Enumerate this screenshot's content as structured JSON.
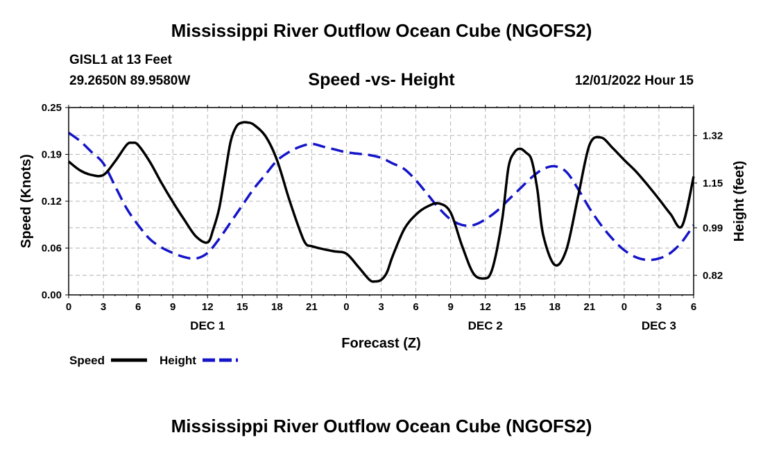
{
  "header": {
    "main_title": "Mississippi River Outflow Ocean Cube (NGOFS2)",
    "station": "GISL1 at 13 Feet",
    "coordinates": "29.2650N  89.9580W",
    "chart_title": "Speed -vs- Height",
    "datetime": "12/01/2022 Hour 15"
  },
  "footer": {
    "repeat_title": "Mississippi River Outflow Ocean Cube (NGOFS2)"
  },
  "colors": {
    "speed": "#000000",
    "height": "#1414c8",
    "grid": "#b4b4b4"
  },
  "chart_data": {
    "type": "line",
    "title": "Speed -vs- Height",
    "xlabel": "Forecast (Z)",
    "ylabel": "Speed (Knots)",
    "ylabel_right": "Height (feet)",
    "x_range_hours": [
      0,
      54
    ],
    "x_tick_labels": [
      "0",
      "3",
      "6",
      "9",
      "12",
      "15",
      "18",
      "21",
      "0",
      "3",
      "6",
      "9",
      "12",
      "15",
      "18",
      "21",
      "0",
      "3",
      "6"
    ],
    "date_labels": [
      {
        "hour": 12,
        "label": "DEC 1"
      },
      {
        "hour": 36,
        "label": "DEC 2"
      },
      {
        "hour": 51,
        "label": "DEC 3"
      }
    ],
    "ylim": [
      0,
      0.25
    ],
    "y_ticks": [
      "0.25",
      "0.19",
      "0.12",
      "0.06",
      "0.00"
    ],
    "ylim_right": [
      0.75,
      1.42
    ],
    "y_ticks_right": [
      {
        "value": 1.32,
        "label": "1.32"
      },
      {
        "value": 1.15,
        "label": "1.15"
      },
      {
        "value": 0.99,
        "label": "0.99"
      },
      {
        "value": 0.82,
        "label": "0.82"
      }
    ],
    "grid": true,
    "legend": {
      "position": "bottom-left",
      "entries": [
        "Speed",
        "Height"
      ]
    },
    "series": [
      {
        "name": "Speed",
        "axis": "left",
        "style": "solid",
        "x": [
          0,
          1,
          2,
          3,
          4,
          5,
          5.5,
          6,
          7,
          8,
          9,
          10,
          11,
          12,
          12.5,
          13,
          13.5,
          14,
          14.5,
          15,
          15.5,
          16,
          17,
          18,
          19,
          20,
          20.5,
          21,
          22,
          23,
          24,
          25,
          26,
          26.5,
          27,
          27.5,
          28,
          29,
          30,
          31,
          32,
          33,
          34,
          35,
          36,
          36.5,
          37,
          37.5,
          38,
          38.5,
          39,
          39.5,
          40,
          40.5,
          41,
          42,
          43,
          44,
          45,
          46,
          47,
          48,
          49,
          50,
          51,
          52,
          53,
          54
        ],
        "values": [
          0.178,
          0.166,
          0.16,
          0.16,
          0.178,
          0.2,
          0.203,
          0.2,
          0.178,
          0.15,
          0.124,
          0.1,
          0.078,
          0.07,
          0.088,
          0.115,
          0.16,
          0.205,
          0.225,
          0.23,
          0.23,
          0.227,
          0.212,
          0.18,
          0.13,
          0.085,
          0.068,
          0.065,
          0.061,
          0.058,
          0.055,
          0.038,
          0.02,
          0.018,
          0.02,
          0.03,
          0.052,
          0.088,
          0.107,
          0.118,
          0.122,
          0.11,
          0.065,
          0.028,
          0.022,
          0.03,
          0.06,
          0.105,
          0.17,
          0.19,
          0.195,
          0.19,
          0.18,
          0.14,
          0.08,
          0.04,
          0.06,
          0.13,
          0.2,
          0.21,
          0.196,
          0.18,
          0.165,
          0.147,
          0.128,
          0.108,
          0.092,
          0.158
        ]
      },
      {
        "name": "Height",
        "axis": "right",
        "style": "dashed",
        "x": [
          0,
          1,
          2,
          3,
          4,
          5,
          6,
          7,
          8,
          9,
          10,
          11,
          12,
          13,
          14,
          15,
          16,
          17,
          18,
          19,
          20,
          21,
          22,
          23,
          24,
          25,
          26,
          27,
          28,
          29,
          30,
          31,
          32,
          33,
          34,
          35,
          36,
          37,
          38,
          39,
          40,
          41,
          42,
          43,
          44,
          45,
          46,
          47,
          48,
          49,
          50,
          51,
          52,
          53,
          54
        ],
        "values": [
          1.33,
          1.3,
          1.26,
          1.22,
          1.14,
          1.06,
          1.0,
          0.95,
          0.92,
          0.9,
          0.885,
          0.88,
          0.9,
          0.95,
          1.01,
          1.07,
          1.13,
          1.18,
          1.23,
          1.26,
          1.28,
          1.29,
          1.28,
          1.27,
          1.26,
          1.255,
          1.25,
          1.24,
          1.22,
          1.2,
          1.16,
          1.11,
          1.06,
          1.02,
          1.0,
          1.0,
          1.02,
          1.05,
          1.09,
          1.13,
          1.17,
          1.2,
          1.21,
          1.19,
          1.13,
          1.06,
          1.0,
          0.95,
          0.91,
          0.885,
          0.875,
          0.88,
          0.9,
          0.94,
          1.0
        ]
      }
    ]
  }
}
